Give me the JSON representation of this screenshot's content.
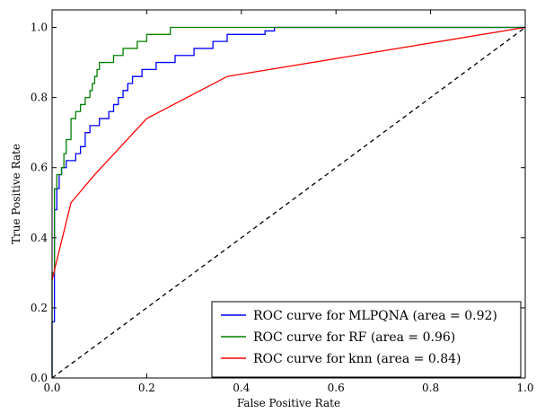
{
  "chart_data": {
    "type": "line",
    "title": "",
    "xlabel": "False Positive Rate",
    "ylabel": "True Positive Rate",
    "xlim": [
      0.0,
      1.0
    ],
    "ylim": [
      0.0,
      1.05
    ],
    "xticks": [
      "0.0",
      "0.2",
      "0.4",
      "0.6",
      "0.8",
      "1.0"
    ],
    "yticks": [
      "0.0",
      "0.2",
      "0.4",
      "0.6",
      "0.8",
      "1.0"
    ],
    "grid": false,
    "legend_position": "lower-right",
    "series": [
      {
        "name": "ROC curve for MLPQNA (area = 0.92)",
        "color": "#0000ff",
        "x": [
          0.0,
          0.0,
          0.005,
          0.005,
          0.01,
          0.01,
          0.015,
          0.015,
          0.02,
          0.02,
          0.03,
          0.03,
          0.05,
          0.05,
          0.06,
          0.06,
          0.07,
          0.07,
          0.08,
          0.08,
          0.1,
          0.1,
          0.12,
          0.12,
          0.13,
          0.13,
          0.14,
          0.14,
          0.15,
          0.15,
          0.16,
          0.16,
          0.17,
          0.17,
          0.19,
          0.19,
          0.22,
          0.22,
          0.26,
          0.26,
          0.3,
          0.3,
          0.34,
          0.34,
          0.37,
          0.37,
          0.45,
          0.45,
          0.47,
          0.47,
          0.53,
          0.53,
          1.0
        ],
        "y": [
          0.0,
          0.16,
          0.16,
          0.48,
          0.48,
          0.54,
          0.54,
          0.58,
          0.58,
          0.6,
          0.6,
          0.62,
          0.62,
          0.64,
          0.64,
          0.66,
          0.66,
          0.7,
          0.7,
          0.72,
          0.72,
          0.74,
          0.74,
          0.76,
          0.76,
          0.78,
          0.78,
          0.8,
          0.8,
          0.82,
          0.82,
          0.84,
          0.84,
          0.86,
          0.86,
          0.88,
          0.88,
          0.9,
          0.9,
          0.92,
          0.92,
          0.94,
          0.94,
          0.96,
          0.96,
          0.98,
          0.98,
          0.99,
          0.99,
          1.0,
          1.0,
          1.0,
          1.0
        ]
      },
      {
        "name": "ROC curve for RF (area = 0.96)",
        "color": "#008000",
        "x": [
          0.0,
          0.0,
          0.005,
          0.005,
          0.01,
          0.01,
          0.02,
          0.02,
          0.025,
          0.025,
          0.03,
          0.03,
          0.04,
          0.04,
          0.05,
          0.05,
          0.06,
          0.06,
          0.07,
          0.07,
          0.08,
          0.08,
          0.085,
          0.085,
          0.09,
          0.09,
          0.095,
          0.095,
          0.1,
          0.1,
          0.13,
          0.13,
          0.15,
          0.15,
          0.18,
          0.18,
          0.2,
          0.2,
          0.25,
          0.25,
          0.37,
          0.37,
          1.0
        ],
        "y": [
          0.0,
          0.3,
          0.3,
          0.54,
          0.54,
          0.58,
          0.58,
          0.6,
          0.6,
          0.64,
          0.64,
          0.68,
          0.68,
          0.74,
          0.74,
          0.76,
          0.76,
          0.78,
          0.78,
          0.8,
          0.8,
          0.82,
          0.82,
          0.84,
          0.84,
          0.86,
          0.86,
          0.88,
          0.88,
          0.9,
          0.9,
          0.92,
          0.92,
          0.94,
          0.94,
          0.96,
          0.96,
          0.98,
          0.98,
          1.0,
          1.0,
          1.0,
          1.0
        ]
      },
      {
        "name": "ROC curve for knn (area = 0.84)",
        "color": "#ff0000",
        "x": [
          0.0,
          0.04,
          0.09,
          0.2,
          0.37,
          1.0
        ],
        "y": [
          0.28,
          0.5,
          0.58,
          0.74,
          0.86,
          1.0
        ]
      },
      {
        "name": "",
        "color": "#000000",
        "dashed": true,
        "x": [
          0.0,
          1.0
        ],
        "y": [
          0.0,
          1.0
        ]
      }
    ]
  }
}
